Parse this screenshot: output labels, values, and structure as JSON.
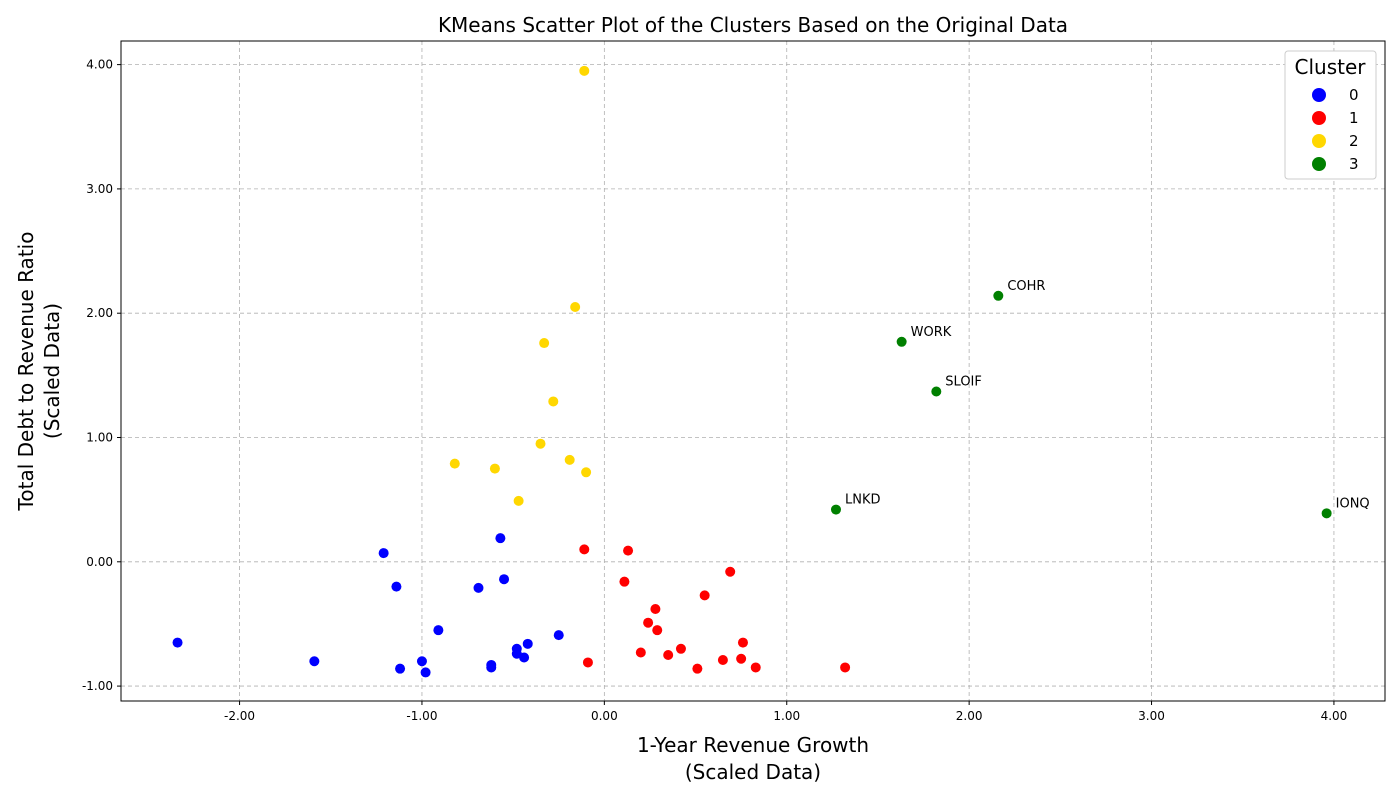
{
  "chart_data": {
    "type": "scatter",
    "title": "KMeans Scatter Plot of the Clusters Based on the Original Data",
    "xlabel": [
      "1-Year Revenue Growth",
      "(Scaled Data)"
    ],
    "ylabel": [
      "Total Debt to Revenue Ratio",
      "(Scaled Data)"
    ],
    "xlim": [
      -2.65,
      4.28
    ],
    "ylim": [
      -1.12,
      4.19
    ],
    "x_ticks": [
      -2.0,
      -1.0,
      0.0,
      1.0,
      2.0,
      3.0,
      4.0
    ],
    "y_ticks": [
      -1.0,
      0.0,
      1.0,
      2.0,
      3.0,
      4.0
    ],
    "x_tick_labels": [
      "-2.00",
      "-1.00",
      "0.00",
      "1.00",
      "2.00",
      "3.00",
      "4.00"
    ],
    "y_tick_labels": [
      "-1.00",
      "0.00",
      "1.00",
      "2.00",
      "3.00",
      "4.00"
    ],
    "grid": true,
    "legend": {
      "title": "Cluster",
      "placement": "top-right"
    },
    "series": [
      {
        "name": "0",
        "color": "#0000ff",
        "points": [
          [
            -2.34,
            -0.65
          ],
          [
            -1.59,
            -0.8
          ],
          [
            -1.21,
            0.07
          ],
          [
            -1.14,
            -0.2
          ],
          [
            -1.12,
            -0.86
          ],
          [
            -1.0,
            -0.8
          ],
          [
            -0.98,
            -0.89
          ],
          [
            -0.91,
            -0.55
          ],
          [
            -0.69,
            -0.21
          ],
          [
            -0.62,
            -0.83
          ],
          [
            -0.62,
            -0.85
          ],
          [
            -0.57,
            0.19
          ],
          [
            -0.55,
            -0.14
          ],
          [
            -0.48,
            -0.7
          ],
          [
            -0.48,
            -0.74
          ],
          [
            -0.44,
            -0.77
          ],
          [
            -0.42,
            -0.66
          ],
          [
            -0.25,
            -0.59
          ]
        ]
      },
      {
        "name": "1",
        "color": "#ff0000",
        "points": [
          [
            -0.11,
            0.1
          ],
          [
            -0.09,
            -0.81
          ],
          [
            0.11,
            -0.16
          ],
          [
            0.13,
            0.09
          ],
          [
            0.2,
            -0.73
          ],
          [
            0.24,
            -0.49
          ],
          [
            0.28,
            -0.38
          ],
          [
            0.29,
            -0.55
          ],
          [
            0.35,
            -0.75
          ],
          [
            0.42,
            -0.7
          ],
          [
            0.51,
            -0.86
          ],
          [
            0.55,
            -0.27
          ],
          [
            0.65,
            -0.79
          ],
          [
            0.69,
            -0.08
          ],
          [
            0.75,
            -0.78
          ],
          [
            0.76,
            -0.65
          ],
          [
            0.83,
            -0.85
          ],
          [
            1.32,
            -0.85
          ]
        ]
      },
      {
        "name": "2",
        "color": "#ffd700",
        "points": [
          [
            -0.82,
            0.79
          ],
          [
            -0.6,
            0.75
          ],
          [
            -0.47,
            0.49
          ],
          [
            -0.35,
            0.95
          ],
          [
            -0.33,
            1.76
          ],
          [
            -0.28,
            1.29
          ],
          [
            -0.19,
            0.82
          ],
          [
            -0.16,
            2.05
          ],
          [
            -0.11,
            3.95
          ],
          [
            -0.1,
            0.72
          ]
        ]
      },
      {
        "name": "3",
        "color": "#008000",
        "points": [
          [
            1.27,
            0.42,
            "LNKD"
          ],
          [
            1.63,
            1.77,
            "WORK"
          ],
          [
            1.82,
            1.37,
            "SLOIF"
          ],
          [
            2.16,
            2.14,
            "COHR"
          ],
          [
            3.96,
            0.39,
            "IONQ"
          ]
        ]
      }
    ]
  }
}
